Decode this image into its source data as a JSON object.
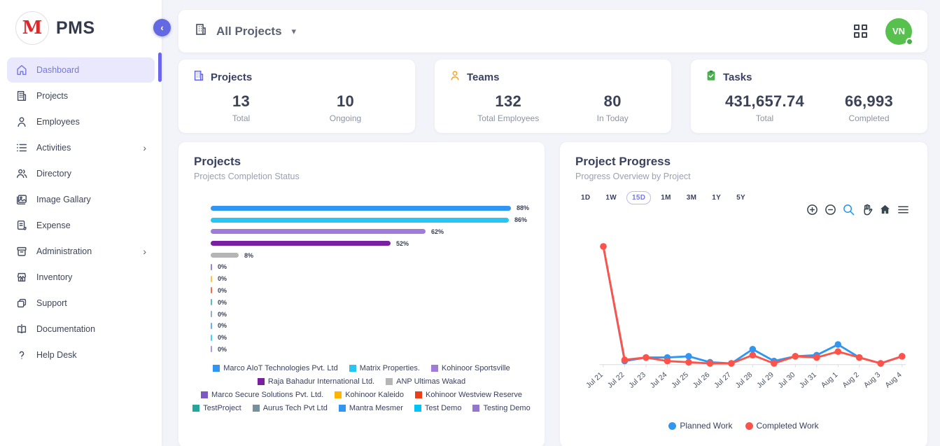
{
  "app": {
    "name": "PMS",
    "logo_letter": "M"
  },
  "sidebar": {
    "active": "Dashboard",
    "items": [
      {
        "label": "Dashboard",
        "icon": "home-icon",
        "has_submenu": false
      },
      {
        "label": "Projects",
        "icon": "building-icon",
        "has_submenu": false
      },
      {
        "label": "Employees",
        "icon": "person-icon",
        "has_submenu": false
      },
      {
        "label": "Activities",
        "icon": "list-icon",
        "has_submenu": true
      },
      {
        "label": "Directory",
        "icon": "people-icon",
        "has_submenu": false
      },
      {
        "label": "Image Gallary",
        "icon": "image-icon",
        "has_submenu": false
      },
      {
        "label": "Expense",
        "icon": "document-icon",
        "has_submenu": false
      },
      {
        "label": "Administration",
        "icon": "archive-icon",
        "has_submenu": true
      },
      {
        "label": "Inventory",
        "icon": "store-icon",
        "has_submenu": false
      },
      {
        "label": "Support",
        "icon": "copy-icon",
        "has_submenu": false
      },
      {
        "label": "Documentation",
        "icon": "book-icon",
        "has_submenu": false
      },
      {
        "label": "Help Desk",
        "icon": "question-icon",
        "has_submenu": false
      }
    ]
  },
  "topbar": {
    "project_filter": "All Projects"
  },
  "avatar": {
    "initials": "VN",
    "status_color": "#4cae4a"
  },
  "stats_cards": [
    {
      "title": "Projects",
      "icon": "building-icon",
      "icon_color": "#6366f1",
      "metrics": [
        {
          "value": "13",
          "label": "Total"
        },
        {
          "value": "10",
          "label": "Ongoing"
        }
      ]
    },
    {
      "title": "Teams",
      "icon": "person-icon",
      "icon_color": "#f5a623",
      "metrics": [
        {
          "value": "132",
          "label": "Total Employees"
        },
        {
          "value": "80",
          "label": "In Today"
        }
      ]
    },
    {
      "title": "Tasks",
      "icon": "clipboard-check-icon",
      "icon_color": "#4caf50",
      "metrics": [
        {
          "value": "431,657.74",
          "label": "Total"
        },
        {
          "value": "66,993",
          "label": "Completed"
        }
      ]
    }
  ],
  "projects_panel": {
    "title": "Projects",
    "subtitle": "Projects Completion Status"
  },
  "progress_panel": {
    "title": "Project Progress",
    "subtitle": "Progress Overview by Project",
    "ranges": [
      "1D",
      "1W",
      "15D",
      "1M",
      "3M",
      "1Y",
      "5Y"
    ],
    "active_range": "15D",
    "toolbar_icons": [
      "zoom-in-icon",
      "zoom-out-icon",
      "selection-zoom-icon",
      "pan-icon",
      "home-icon",
      "menu-icon"
    ]
  },
  "chart_data": [
    {
      "type": "bar",
      "orientation": "horizontal",
      "title": "Projects Completion Status",
      "categories": [
        "Marco AIoT Technologies Pvt. Ltd",
        "Matrix Properties.",
        "Kohinoor Sportsville",
        "Raja Bahadur International Ltd.",
        "ANP Ultimas Wakad",
        "Marco Secure Solutions Pvt. Ltd.",
        "Kohinoor Kaleido",
        "Kohinoor Westview Reserve",
        "TestProject",
        "Aurus Tech Pvt Ltd",
        "Mantra Mesmer",
        "Test Demo",
        "Testing Demo"
      ],
      "values": [
        88,
        86,
        62,
        52,
        8,
        0,
        0,
        0,
        0,
        0,
        0,
        0,
        0
      ],
      "value_labels": [
        "88%",
        "86%",
        "62%",
        "52%",
        "8%",
        "0%",
        "0%",
        "0%",
        "0%",
        "0%",
        "0%",
        "0%",
        "0%"
      ],
      "colors": [
        "#2f97f3",
        "#29c5f2",
        "#a07cd8",
        "#7b1fa2",
        "#b5b5b5",
        "#7e57c2",
        "#ffb300",
        "#ee3e17",
        "#26a69a",
        "#78909c",
        "#2f97f3",
        "#00c3f5",
        "#9575cd"
      ],
      "xlim": [
        0,
        100
      ],
      "legend_position": "bottom",
      "legend_breaks": [
        3,
        5,
        8
      ]
    },
    {
      "type": "line",
      "title": "Progress Overview by Project",
      "x": [
        "Jul 21",
        "Jul 22",
        "Jul 23",
        "Jul 24",
        "Jul 25",
        "Jul 26",
        "Jul 27",
        "Jul 28",
        "Jul 29",
        "Jul 30",
        "Jul 31",
        "Aug 1",
        "Aug 2",
        "Aug 3",
        "Aug 4"
      ],
      "series": [
        {
          "name": "Planned Work",
          "color": "#2f97f3",
          "values": [
            100,
            3,
            6,
            6,
            7,
            2,
            1,
            13,
            3,
            7,
            8,
            17,
            6,
            1,
            7
          ]
        },
        {
          "name": "Completed Work",
          "color": "#ff5349",
          "values": [
            100,
            4,
            6,
            3,
            2,
            1,
            1,
            8,
            1,
            7,
            6,
            11,
            6,
            1,
            7
          ]
        }
      ],
      "ylim": [
        0,
        105
      ],
      "grid": false,
      "legend_position": "bottom"
    }
  ]
}
